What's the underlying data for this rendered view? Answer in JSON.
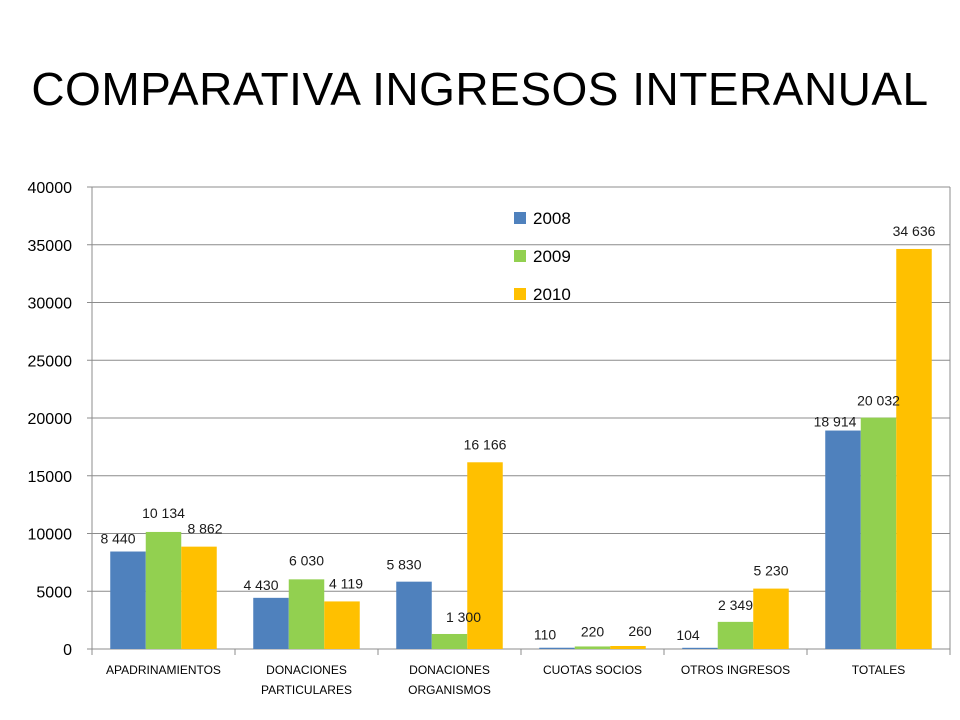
{
  "title": "COMPARATIVA INGRESOS INTERANUAL",
  "chart_data": {
    "type": "bar",
    "title": "COMPARATIVA INGRESOS INTERANUAL",
    "xlabel": "",
    "ylabel": "",
    "ylim": [
      0,
      40000
    ],
    "yticks": [
      "0",
      "5000",
      "10000",
      "15000",
      "20000",
      "25000",
      "30000",
      "35000",
      "40000"
    ],
    "categories": [
      [
        "APADRINAMIENTOS"
      ],
      [
        "DONACIONES",
        "PARTICULARES"
      ],
      [
        "DONACIONES",
        "ORGANISMOS"
      ],
      [
        "CUOTAS SOCIOS"
      ],
      [
        "OTROS INGRESOS"
      ],
      [
        "TOTALES"
      ]
    ],
    "series": [
      {
        "name": "2008",
        "color": "#4F81BD",
        "values": [
          8440,
          4430,
          5830,
          110,
          104,
          18914
        ],
        "labels": [
          "8 440",
          "4 430",
          "5 830",
          "110",
          "104",
          "18 914"
        ]
      },
      {
        "name": "2009",
        "color": "#92D050",
        "values": [
          10134,
          6030,
          1300,
          220,
          2349,
          20032
        ],
        "labels": [
          "10 134",
          "6 030",
          "1 300",
          "220",
          "2 349",
          "20 032"
        ]
      },
      {
        "name": "2010",
        "color": "#FFC000",
        "values": [
          8862,
          4119,
          16166,
          260,
          5230,
          34636
        ],
        "labels": [
          "8 862",
          "4 119",
          "16 166",
          "260",
          "5 230",
          "34 636"
        ]
      }
    ],
    "grid": true,
    "legend_position": "top-center"
  }
}
